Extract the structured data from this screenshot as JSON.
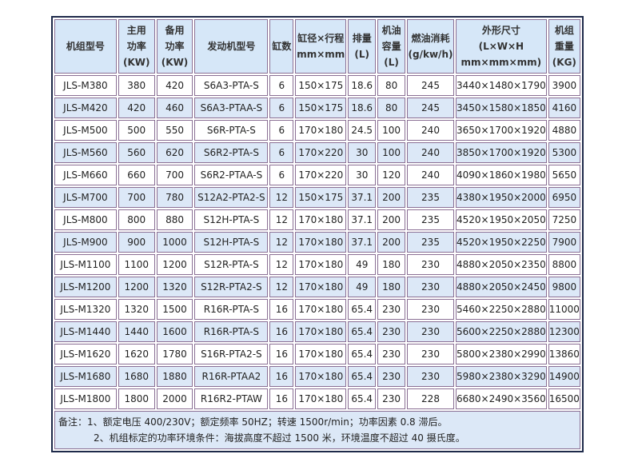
{
  "headers": [
    [
      "机组型号"
    ],
    [
      "主用",
      "功率",
      "(KW)"
    ],
    [
      "备用",
      "功率",
      "(KW)"
    ],
    [
      "发动机型号"
    ],
    [
      "缸数"
    ],
    [
      "缸径×行程",
      "mm×mm"
    ],
    [
      "排量",
      "(L)"
    ],
    [
      "机油",
      "容量",
      "(L)"
    ],
    [
      "燃油消耗",
      "(g/kw/h)"
    ],
    [
      "外形尺寸",
      "(L×W×H",
      "mm×mm×mm)"
    ],
    [
      "机组",
      "重量",
      "(KG)"
    ]
  ],
  "rows": [
    [
      "JLS-M380",
      "380",
      "420",
      "S6A3-PTA-S",
      "6",
      "150×175",
      "18.6",
      "80",
      "245",
      "3440×1480×1790",
      "3900"
    ],
    [
      "JLS-M420",
      "420",
      "460",
      "S6A3-PTAA-S",
      "6",
      "150×175",
      "18.6",
      "80",
      "245",
      "3450×1580×1850",
      "4160"
    ],
    [
      "JLS-M500",
      "500",
      "550",
      "S6R-PTA-S",
      "6",
      "170×180",
      "24.5",
      "100",
      "240",
      "3650×1700×1920",
      "4880"
    ],
    [
      "JLS-M560",
      "560",
      "620",
      "S6R2-PTA-S",
      "6",
      "170×220",
      "30",
      "100",
      "240",
      "3850×1700×1920",
      "5300"
    ],
    [
      "JLS-M660",
      "660",
      "700",
      "S6R2-PTAA-S",
      "6",
      "170×220",
      "30",
      "120",
      "240",
      "4090×1860×1980",
      "5650"
    ],
    [
      "JLS-M700",
      "700",
      "780",
      "S12A2-PTA2-S",
      "12",
      "150×175",
      "37.1",
      "200",
      "235",
      "4380×1950×2000",
      "6950"
    ],
    [
      "JLS-M800",
      "800",
      "880",
      "S12H-PTA-S",
      "12",
      "170×180",
      "37.1",
      "200",
      "235",
      "4520×1950×2050",
      "7250"
    ],
    [
      "JLS-M900",
      "900",
      "1000",
      "S12H-PTA-S",
      "12",
      "170×180",
      "37.1",
      "200",
      "235",
      "4520×1950×2250",
      "7900"
    ],
    [
      "JLS-M1100",
      "1100",
      "1200",
      "S12R-PTA-S",
      "12",
      "170×180",
      "49",
      "180",
      "230",
      "4880×2050×2350",
      "8800"
    ],
    [
      "JLS-M1200",
      "1200",
      "1320",
      "S12R-PTA2-S",
      "12",
      "170×180",
      "49",
      "180",
      "230",
      "4880×2050×2450",
      "9800"
    ],
    [
      "JLS-M1320",
      "1320",
      "1500",
      "R16R-PTA-S",
      "16",
      "170×180",
      "65.4",
      "230",
      "230",
      "5460×2250×2880",
      "11000"
    ],
    [
      "JLS-M1440",
      "1440",
      "1600",
      "R16R-PTA-S",
      "16",
      "170×180",
      "65.4",
      "230",
      "230",
      "5600×2250×2880",
      "12300"
    ],
    [
      "JLS-M1620",
      "1620",
      "1780",
      "S16R-PTA2-S",
      "16",
      "170×180",
      "65.4",
      "230",
      "230",
      "5800×2380×2990",
      "13860"
    ],
    [
      "JLS-M1680",
      "1680",
      "1880",
      "R16R-PTAA2",
      "16",
      "170×180",
      "65.4",
      "230",
      "230",
      "5980×2380×3290",
      "14900"
    ],
    [
      "JLS-M1800",
      "1800",
      "2000",
      "R16R2-PTAW",
      "16",
      "170×180",
      "65.4",
      "230",
      "228",
      "6680×2490×3560",
      "16500"
    ]
  ],
  "notes": {
    "line1": "备注：1、额定电压 400/230V；额定频率 50HZ；转速 1500r/min；功率因素 0.8 滞后。",
    "line2": "2、机组标定的功率环境条件：海拔高度不超过 1500 米，环境温度不超过 40 摄氏度。"
  },
  "colors": {
    "header_bg": "#d6e7f8",
    "alt_row_bg": "#dce8f7",
    "border": "#1e2a4a"
  }
}
